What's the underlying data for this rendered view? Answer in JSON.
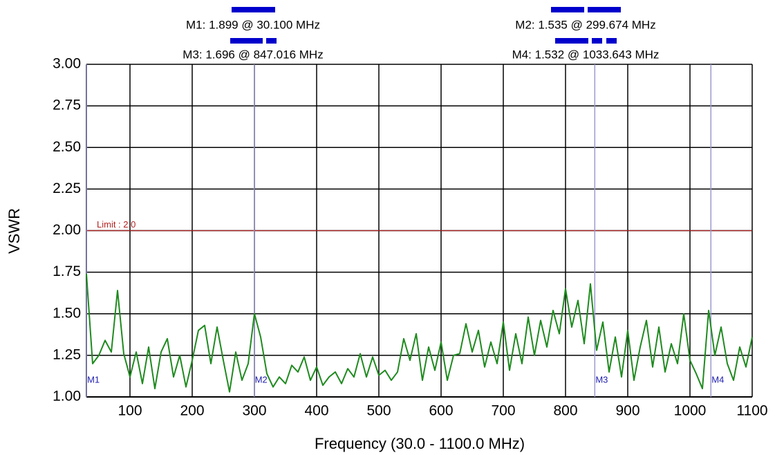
{
  "chart_data": {
    "type": "line",
    "xlabel": "Frequency (30.0 - 1100.0 MHz)",
    "ylabel": "VSWR",
    "xlim": [
      30,
      1100
    ],
    "ylim": [
      1,
      3
    ],
    "xticks": [
      100,
      200,
      300,
      400,
      500,
      600,
      700,
      800,
      900,
      1000,
      1100
    ],
    "yticks": [
      {
        "value": 3,
        "label": "3.00"
      },
      2.75,
      {
        "value": 2.5,
        "label": "2.50"
      },
      2.25,
      {
        "value": 2,
        "label": "2.00"
      },
      1.75,
      {
        "value": 1.5,
        "label": "1.50"
      },
      1.25,
      {
        "value": 1,
        "label": "1.00"
      }
    ],
    "grid": true,
    "limit": {
      "label": "Limit : 2.0",
      "value": 2.0,
      "color": "#b22222"
    },
    "markers": [
      {
        "name": "M1",
        "label": "M1: 1.899  @ 30.100 MHz",
        "x": 30.1,
        "value": 1.899
      },
      {
        "name": "M2",
        "label": "M2: 1.535  @ 299.674 MHz",
        "x": 299.674,
        "value": 1.535
      },
      {
        "name": "M3",
        "label": "M3: 1.696  @ 847.016 MHz",
        "x": 847.016,
        "value": 1.696
      },
      {
        "name": "M4",
        "label": "M4: 1.532  @ 1033.643 MHz",
        "x": 1033.643,
        "value": 1.532
      }
    ],
    "marker_color": "#9a9ad0",
    "x": [
      30,
      40,
      50,
      60,
      70,
      80,
      90,
      100,
      110,
      120,
      130,
      140,
      150,
      160,
      170,
      180,
      190,
      200,
      210,
      220,
      230,
      240,
      250,
      260,
      270,
      280,
      290,
      300,
      310,
      320,
      330,
      340,
      350,
      360,
      370,
      380,
      390,
      400,
      410,
      420,
      430,
      440,
      450,
      460,
      470,
      480,
      490,
      500,
      510,
      520,
      530,
      540,
      550,
      560,
      570,
      580,
      590,
      600,
      610,
      620,
      630,
      640,
      650,
      660,
      670,
      680,
      690,
      700,
      710,
      720,
      730,
      740,
      750,
      760,
      770,
      780,
      790,
      800,
      810,
      820,
      830,
      840,
      850,
      860,
      870,
      880,
      890,
      900,
      910,
      920,
      930,
      940,
      950,
      960,
      970,
      980,
      990,
      1000,
      1010,
      1020,
      1030,
      1040,
      1050,
      1060,
      1070,
      1080,
      1090,
      1100
    ],
    "series": [
      {
        "color": "#1e8a1e",
        "values": [
          1.74,
          1.2,
          1.25,
          1.34,
          1.27,
          1.64,
          1.26,
          1.12,
          1.27,
          1.08,
          1.3,
          1.05,
          1.27,
          1.35,
          1.12,
          1.25,
          1.06,
          1.22,
          1.4,
          1.43,
          1.2,
          1.42,
          1.22,
          1.03,
          1.27,
          1.1,
          1.2,
          1.5,
          1.36,
          1.14,
          1.06,
          1.12,
          1.08,
          1.19,
          1.15,
          1.24,
          1.1,
          1.18,
          1.07,
          1.12,
          1.15,
          1.08,
          1.17,
          1.12,
          1.26,
          1.12,
          1.24,
          1.13,
          1.16,
          1.1,
          1.15,
          1.35,
          1.22,
          1.38,
          1.1,
          1.3,
          1.16,
          1.33,
          1.1,
          1.25,
          1.26,
          1.44,
          1.27,
          1.4,
          1.18,
          1.33,
          1.2,
          1.45,
          1.16,
          1.38,
          1.2,
          1.48,
          1.25,
          1.46,
          1.3,
          1.52,
          1.38,
          1.65,
          1.42,
          1.58,
          1.32,
          1.68,
          1.28,
          1.45,
          1.15,
          1.36,
          1.12,
          1.4,
          1.1,
          1.3,
          1.46,
          1.18,
          1.42,
          1.15,
          1.32,
          1.2,
          1.5,
          1.22,
          1.14,
          1.05,
          1.52,
          1.25,
          1.42,
          1.2,
          1.1,
          1.3,
          1.18,
          1.36
        ]
      }
    ]
  }
}
